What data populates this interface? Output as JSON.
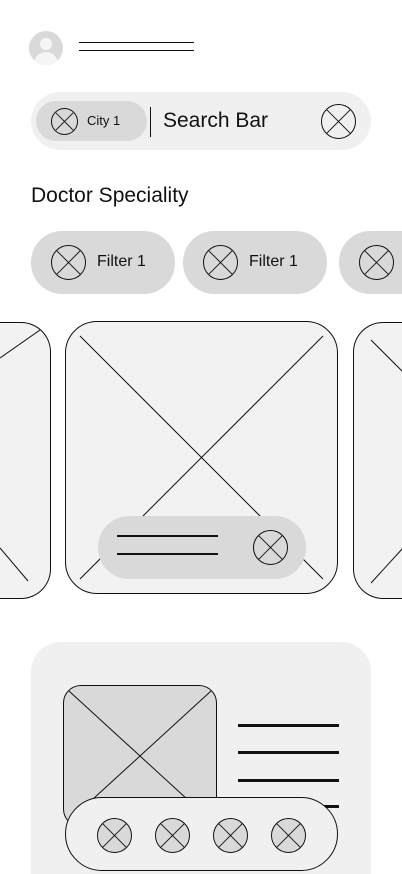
{
  "header": {
    "avatar_icon": "user-avatar-icon",
    "title_placeholder": "title-lines"
  },
  "search": {
    "city_chip_label": "City 1",
    "city_chip_icon": "placeholder-x-icon",
    "placeholder": "Search Bar",
    "clear_icon": "placeholder-x-icon"
  },
  "section": {
    "title": "Doctor Speciality"
  },
  "filters": [
    {
      "label": "Filter 1",
      "icon": "placeholder-x-icon"
    },
    {
      "label": "Filter 1",
      "icon": "placeholder-x-icon"
    },
    {
      "label": "",
      "icon": "placeholder-x-icon"
    }
  ],
  "carousel": {
    "cards": [
      "image-placeholder",
      "image-placeholder",
      "image-placeholder"
    ],
    "overlay_icon": "placeholder-x-icon"
  },
  "doctor_card": {
    "image": "image-placeholder",
    "actions": [
      "placeholder-x-icon",
      "placeholder-x-icon",
      "placeholder-x-icon",
      "placeholder-x-icon"
    ]
  },
  "colors": {
    "chip": "#d9d9d9",
    "surface": "#f0f0f0",
    "stroke": "#111111"
  }
}
